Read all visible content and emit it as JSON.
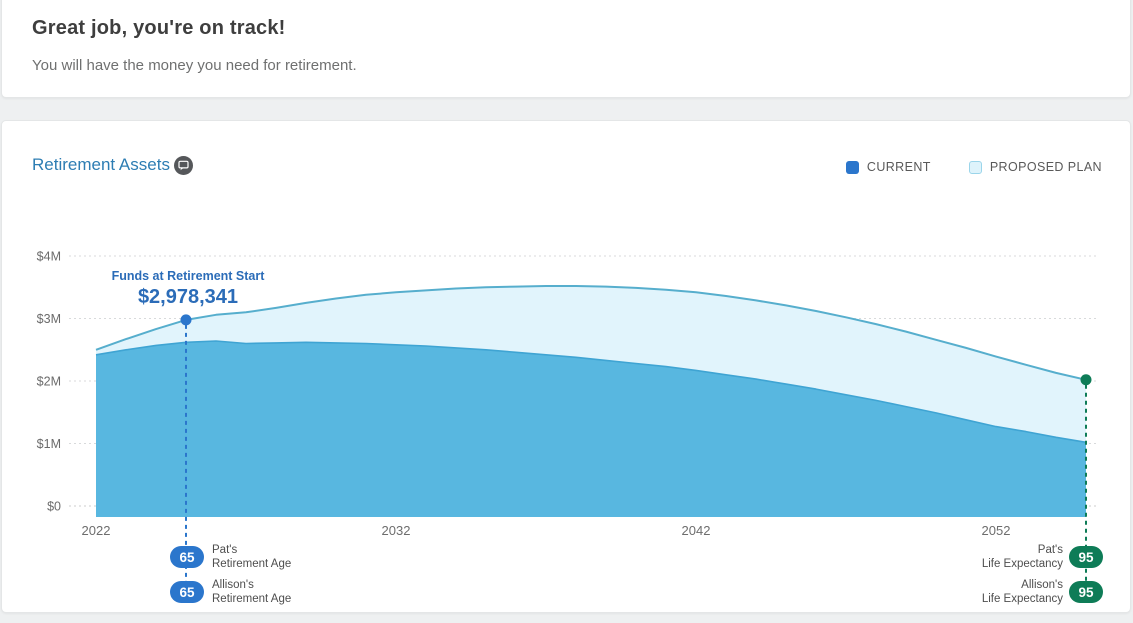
{
  "header": {
    "title": "Great job, you're on track!",
    "subtitle": "You will have the money you need for retirement."
  },
  "chart_card": {
    "title": "Retirement Assets",
    "legend": [
      {
        "label": "CURRENT",
        "swatch": "#2b76cc"
      },
      {
        "label": "PROPOSED PLAN",
        "swatch": "#def3fb",
        "swatch_border": "#9bd5ea"
      }
    ],
    "annotation": {
      "label": "Funds at Retirement Start",
      "value": "$2,978,341"
    },
    "markers": {
      "left": [
        {
          "age": "65",
          "line1": "Pat's",
          "line2": "Retirement Age"
        },
        {
          "age": "65",
          "line1": "Allison's",
          "line2": "Retirement Age"
        }
      ],
      "right": [
        {
          "age": "95",
          "line1": "Pat's",
          "line2": "Life Expectancy"
        },
        {
          "age": "95",
          "line1": "Allison's",
          "line2": "Life Expectancy"
        }
      ]
    },
    "colors": {
      "title_blue": "#2d7db3",
      "annotation_blue": "#2b6cb8",
      "badge_blue": "#2b76cc",
      "badge_green": "#0e7c57"
    }
  },
  "chart_data": {
    "type": "area",
    "title": "Retirement Assets",
    "xlabel": "",
    "ylabel": "",
    "x": [
      2022,
      2023,
      2024,
      2025,
      2026,
      2027,
      2028,
      2029,
      2030,
      2031,
      2032,
      2033,
      2034,
      2035,
      2036,
      2037,
      2038,
      2039,
      2040,
      2041,
      2042,
      2043,
      2044,
      2045,
      2046,
      2047,
      2048,
      2049,
      2050,
      2051,
      2052,
      2053,
      2054,
      2055
    ],
    "series": [
      {
        "name": "CURRENT",
        "fill": "#58b7e0",
        "stroke": "#3fa4d3",
        "stroke_width": 1.6,
        "values": [
          2420000,
          2500000,
          2570000,
          2620000,
          2640000,
          2600000,
          2610000,
          2620000,
          2610000,
          2600000,
          2580000,
          2560000,
          2530000,
          2500000,
          2460000,
          2420000,
          2380000,
          2330000,
          2280000,
          2230000,
          2170000,
          2100000,
          2030000,
          1950000,
          1870000,
          1780000,
          1690000,
          1590000,
          1490000,
          1380000,
          1270000,
          1190000,
          1100000,
          1020000
        ]
      },
      {
        "name": "PROPOSED PLAN",
        "fill": "#e1f4fc",
        "stroke": "#56aecd",
        "stroke_width": 2,
        "values": [
          2500000,
          2670000,
          2830000,
          2978341,
          3060000,
          3100000,
          3170000,
          3250000,
          3320000,
          3380000,
          3420000,
          3450000,
          3480000,
          3500000,
          3510000,
          3520000,
          3520000,
          3510000,
          3490000,
          3460000,
          3420000,
          3360000,
          3290000,
          3210000,
          3120000,
          3020000,
          2910000,
          2790000,
          2660000,
          2530000,
          2390000,
          2260000,
          2130000,
          2020000
        ]
      }
    ],
    "ylim": [
      0,
      4000000
    ],
    "yticks": [
      {
        "value": 0,
        "label": "$0"
      },
      {
        "value": 1000000,
        "label": "$1M"
      },
      {
        "value": 2000000,
        "label": "$2M"
      },
      {
        "value": 3000000,
        "label": "$3M"
      },
      {
        "value": 4000000,
        "label": "$4M"
      }
    ],
    "xticks": [
      2022,
      2032,
      2042,
      2052
    ],
    "grid": "horizontal-dashed",
    "legend_position": "top-right",
    "markers": [
      {
        "x": 2025,
        "y": 2978341,
        "color": "#2b76cc",
        "label": "Funds at Retirement Start"
      },
      {
        "x": 2055,
        "y": 2020000,
        "color": "#0e7c57",
        "label": "Life Expectancy"
      }
    ]
  }
}
